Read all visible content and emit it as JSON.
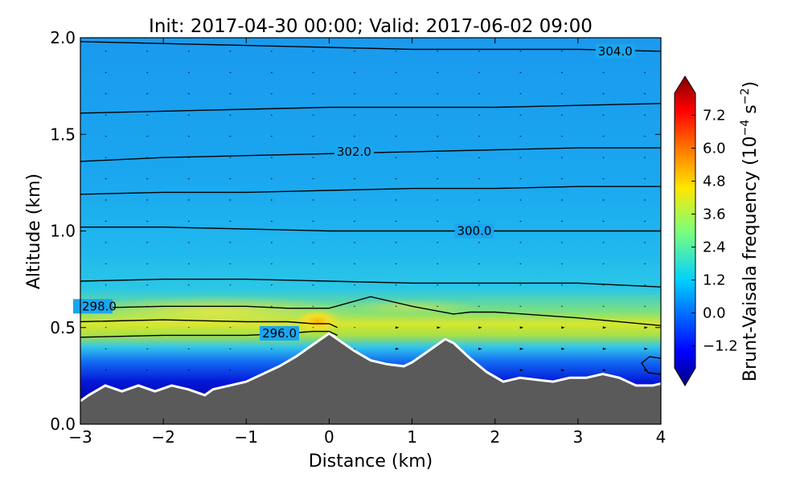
{
  "chart_data": {
    "type": "contour",
    "title": "Init: 2017-04-30 00:00; Valid: 2017-06-02 09:00",
    "xlabel": "Distance (km)",
    "ylabel": "Altitude (km)",
    "xlim": [
      -3,
      4
    ],
    "ylim": [
      0.0,
      2.0
    ],
    "xticks": [
      "−3",
      "−2",
      "−1",
      "0",
      "1",
      "2",
      "3",
      "4"
    ],
    "xtick_values": [
      -3,
      -2,
      -1,
      0,
      1,
      2,
      3,
      4
    ],
    "yticks": [
      "0.0",
      "0.5",
      "1.0",
      "1.5",
      "2.0"
    ],
    "ytick_values": [
      0.0,
      0.5,
      1.0,
      1.5,
      2.0
    ],
    "colorbar": {
      "label_main": "Brunt-Vaisala frequency (10",
      "label_exp1": "−4",
      "label_mid": " s",
      "label_exp2": "−2",
      "label_end": ")",
      "range": [
        -2.0,
        8.0
      ],
      "ticks": [
        "−1.2",
        "0.0",
        "1.2",
        "2.4",
        "3.6",
        "4.8",
        "6.0",
        "7.2"
      ],
      "tick_values": [
        -1.2,
        0.0,
        1.2,
        2.4,
        3.6,
        4.8,
        6.0,
        7.2
      ]
    },
    "terrain": {
      "x": [
        -3.0,
        -2.9,
        -2.7,
        -2.5,
        -2.3,
        -2.1,
        -1.9,
        -1.7,
        -1.5,
        -1.4,
        -1.2,
        -1.0,
        -0.8,
        -0.6,
        -0.4,
        -0.2,
        0.0,
        0.1,
        0.3,
        0.5,
        0.7,
        0.9,
        1.0,
        1.2,
        1.4,
        1.5,
        1.7,
        1.9,
        2.1,
        2.3,
        2.5,
        2.7,
        2.9,
        3.1,
        3.3,
        3.5,
        3.7,
        3.9,
        4.0
      ],
      "y": [
        0.12,
        0.15,
        0.2,
        0.17,
        0.2,
        0.17,
        0.2,
        0.18,
        0.15,
        0.18,
        0.2,
        0.22,
        0.26,
        0.3,
        0.35,
        0.41,
        0.47,
        0.44,
        0.38,
        0.33,
        0.31,
        0.3,
        0.32,
        0.38,
        0.44,
        0.42,
        0.34,
        0.27,
        0.22,
        0.24,
        0.23,
        0.22,
        0.24,
        0.24,
        0.26,
        0.24,
        0.2,
        0.2,
        0.21
      ]
    },
    "isentropes": [
      {
        "label": "304.0",
        "x": [
          -3.0,
          -2.0,
          -1.0,
          0.0,
          1.0,
          2.0,
          3.0,
          4.0
        ],
        "y": [
          1.98,
          1.97,
          1.96,
          1.95,
          1.94,
          1.94,
          1.94,
          1.93
        ]
      },
      {
        "label": "",
        "x": [
          -3.0,
          -2.0,
          -1.0,
          0.0,
          1.0,
          2.0,
          3.0,
          4.0
        ],
        "y": [
          1.61,
          1.62,
          1.63,
          1.64,
          1.64,
          1.64,
          1.65,
          1.66
        ]
      },
      {
        "label": "302.0",
        "x": [
          -3.0,
          -2.0,
          -1.0,
          0.0,
          1.0,
          2.0,
          3.0,
          4.0
        ],
        "y": [
          1.36,
          1.38,
          1.39,
          1.4,
          1.41,
          1.42,
          1.43,
          1.43
        ]
      },
      {
        "label": "",
        "x": [
          -3.0,
          -2.0,
          -1.0,
          0.0,
          1.0,
          2.0,
          3.0,
          4.0
        ],
        "y": [
          1.19,
          1.2,
          1.2,
          1.21,
          1.22,
          1.22,
          1.23,
          1.23
        ]
      },
      {
        "label": "300.0",
        "x": [
          -3.0,
          -2.0,
          -1.0,
          0.0,
          1.0,
          2.0,
          3.0,
          4.0
        ],
        "y": [
          1.02,
          1.02,
          1.01,
          1.0,
          1.0,
          1.0,
          1.0,
          1.0
        ]
      },
      {
        "label": "",
        "x": [
          -3.0,
          -2.0,
          -1.0,
          0.0,
          1.0,
          1.5,
          2.0,
          3.0,
          4.0
        ],
        "y": [
          0.74,
          0.75,
          0.75,
          0.74,
          0.73,
          0.73,
          0.73,
          0.73,
          0.71
        ]
      },
      {
        "label": "298.0",
        "x": [
          -3.0,
          -2.0,
          -1.0,
          -0.5,
          0.0,
          0.5,
          1.0,
          1.5,
          1.7,
          2.0,
          3.0,
          4.0
        ],
        "y": [
          0.6,
          0.61,
          0.61,
          0.6,
          0.6,
          0.66,
          0.61,
          0.57,
          0.58,
          0.58,
          0.55,
          0.51
        ]
      },
      {
        "label": "",
        "x": [
          -3.0,
          -2.0,
          -1.0,
          -0.5,
          -0.2,
          0.0,
          0.1
        ],
        "y": [
          0.53,
          0.54,
          0.53,
          0.53,
          0.52,
          0.52,
          0.5
        ]
      },
      {
        "label": "296.0",
        "x": [
          -3.0,
          -2.0,
          -1.0,
          -0.5,
          -0.2,
          0.0,
          0.1
        ],
        "y": [
          0.45,
          0.46,
          0.46,
          0.47,
          0.48,
          0.48,
          0.46
        ]
      }
    ]
  }
}
